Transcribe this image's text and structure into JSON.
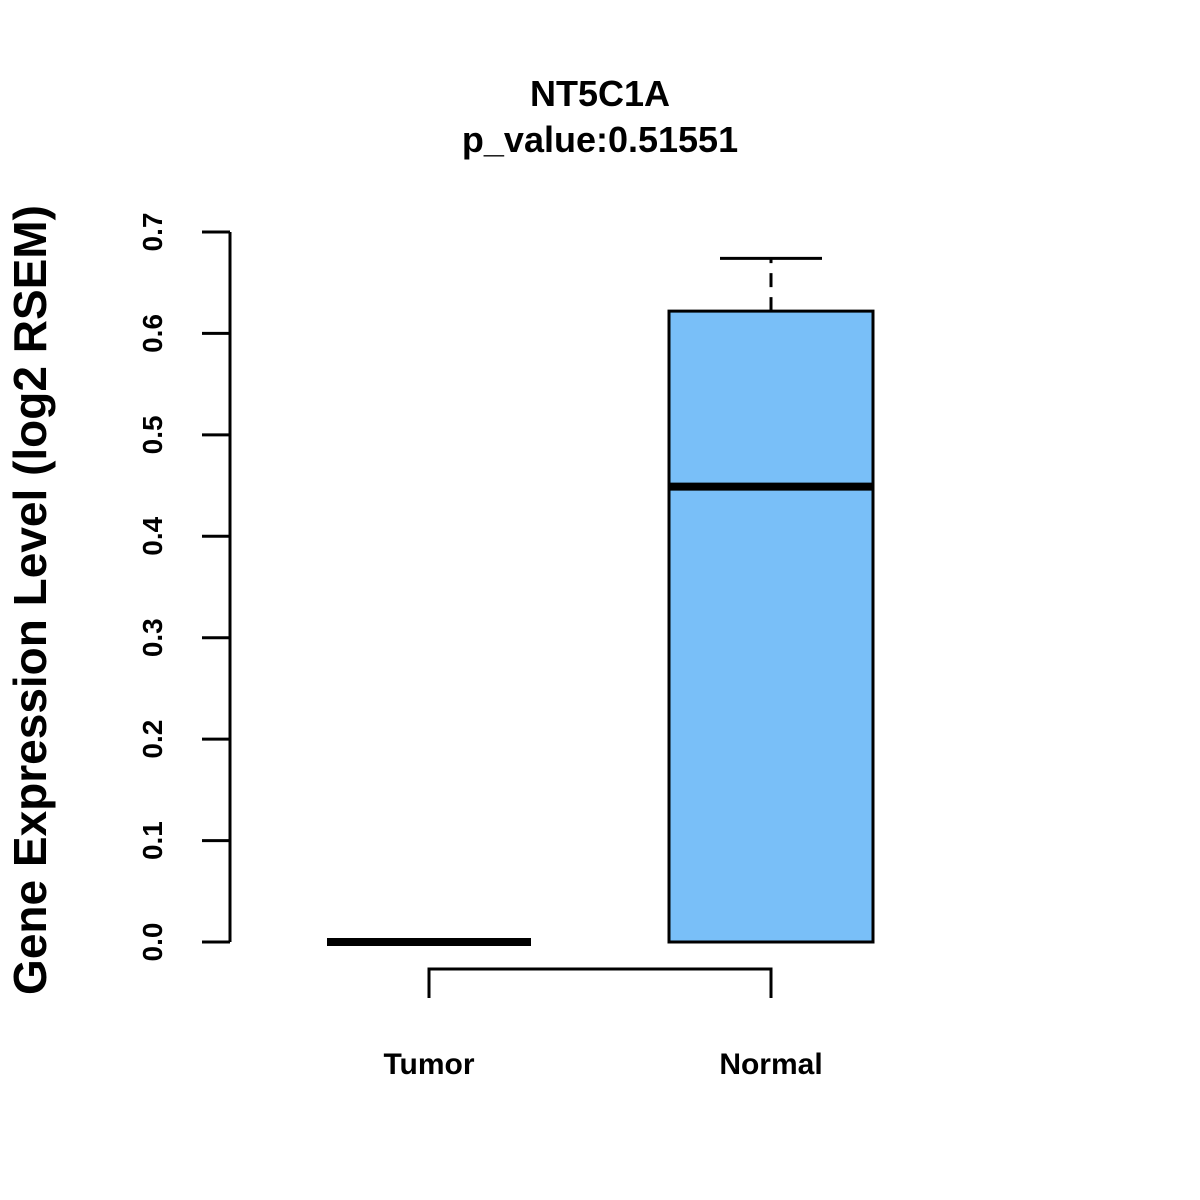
{
  "chart_data": {
    "type": "boxplot",
    "title": "NT5C1A",
    "subtitle": "p_value:0.51551",
    "xlabel": "",
    "ylabel": "Gene Expression Level (log2 RSEM)",
    "ylim": [
      0,
      0.7
    ],
    "yticks": [
      "0.0",
      "0.1",
      "0.2",
      "0.3",
      "0.4",
      "0.5",
      "0.6",
      "0.7"
    ],
    "categories": [
      "Tumor",
      "Normal"
    ],
    "boxes": [
      {
        "name": "Tumor",
        "min": 0,
        "q1": 0,
        "median": 0,
        "q3": 0,
        "max": 0,
        "color": "#ffffff"
      },
      {
        "name": "Normal",
        "min": 0,
        "q1": 0,
        "median": 0.449,
        "q3": 0.622,
        "max": 0.674,
        "color": "#79bff8"
      }
    ],
    "comparison_bracket": [
      "Tumor",
      "Normal"
    ]
  }
}
